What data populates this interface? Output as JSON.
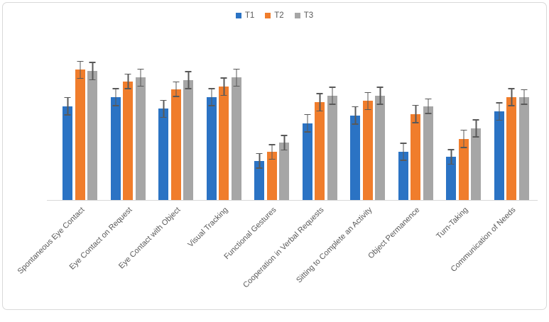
{
  "window": {
    "background": "#ffffff",
    "border_color": "#d9d9d9"
  },
  "colors": {
    "axis_line": "#d9d9d9",
    "error_bar": "#595959",
    "label_text": "#595959"
  },
  "chart_data": {
    "type": "bar",
    "title": "",
    "xlabel": "",
    "ylabel": "",
    "y_axis_visible": false,
    "gridlines": false,
    "error_bars": true,
    "legend_position": "top-center",
    "ylim": [
      0,
      123
    ],
    "categories": [
      "Spontaneous Eye Contact",
      "Eye Contact on Request",
      "Eye Contact with Object",
      "Visual Tracking",
      "Functional Gestures",
      "Cooperation in Verbal Requests",
      "Sitting to Complete an Activity",
      "Object Permanence",
      "Turn-Taking",
      "Communication of Needs"
    ],
    "series": [
      {
        "name": "T1",
        "color": "#2b73c4",
        "values": [
          72,
          79,
          70,
          79,
          30,
          59,
          65,
          37,
          33,
          68
        ],
        "errors": [
          7,
          7,
          7,
          7,
          6,
          7,
          7,
          7,
          6,
          7
        ]
      },
      {
        "name": "T2",
        "color": "#f07d2c",
        "values": [
          100,
          91,
          85,
          87,
          37,
          75,
          76,
          66,
          47,
          79
        ],
        "errors": [
          7,
          6,
          6,
          7,
          6,
          7,
          7,
          7,
          7,
          7
        ]
      },
      {
        "name": "T3",
        "color": "#a6a6a6",
        "values": [
          99,
          94,
          92,
          94,
          44,
          80,
          80,
          72,
          55,
          79
        ],
        "errors": [
          7,
          7,
          7,
          7,
          6,
          7,
          7,
          6,
          7,
          6
        ]
      }
    ]
  }
}
